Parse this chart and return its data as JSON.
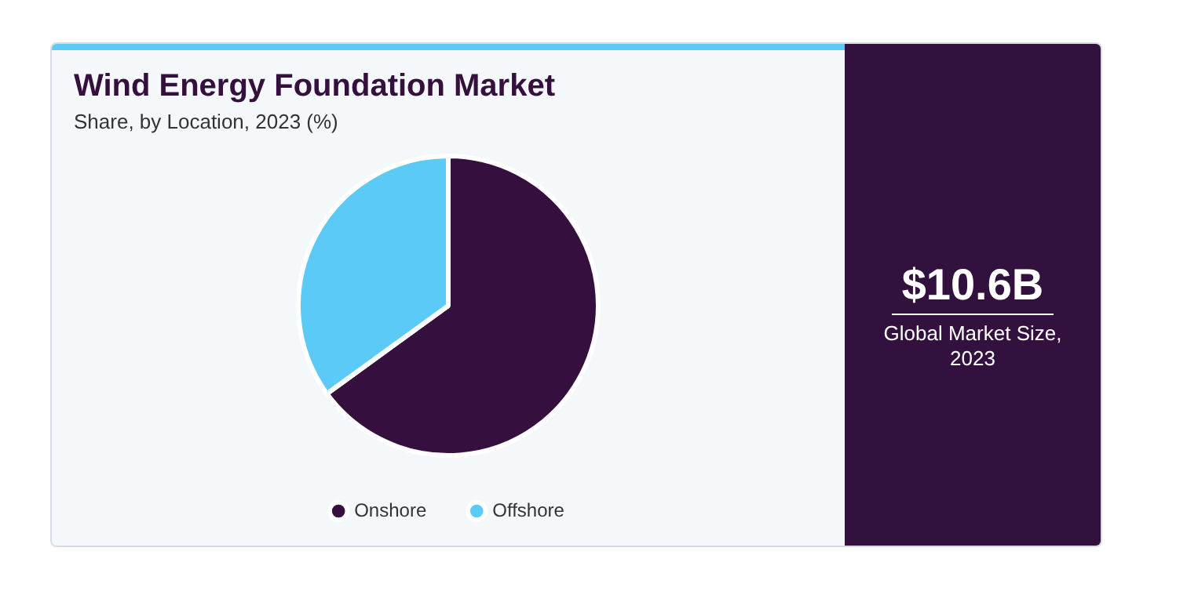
{
  "chart_data": {
    "type": "pie",
    "title": "Wind Energy Foundation Market",
    "subtitle": "Share, by Location, 2023 (%)",
    "categories": [
      "Onshore",
      "Offshore"
    ],
    "values": [
      65,
      35
    ],
    "colors": [
      "#35103f",
      "#5ccaf6"
    ],
    "legend": "bottom",
    "annotations": [
      "$10.6B",
      "Global Market Size, 2023"
    ]
  }
}
